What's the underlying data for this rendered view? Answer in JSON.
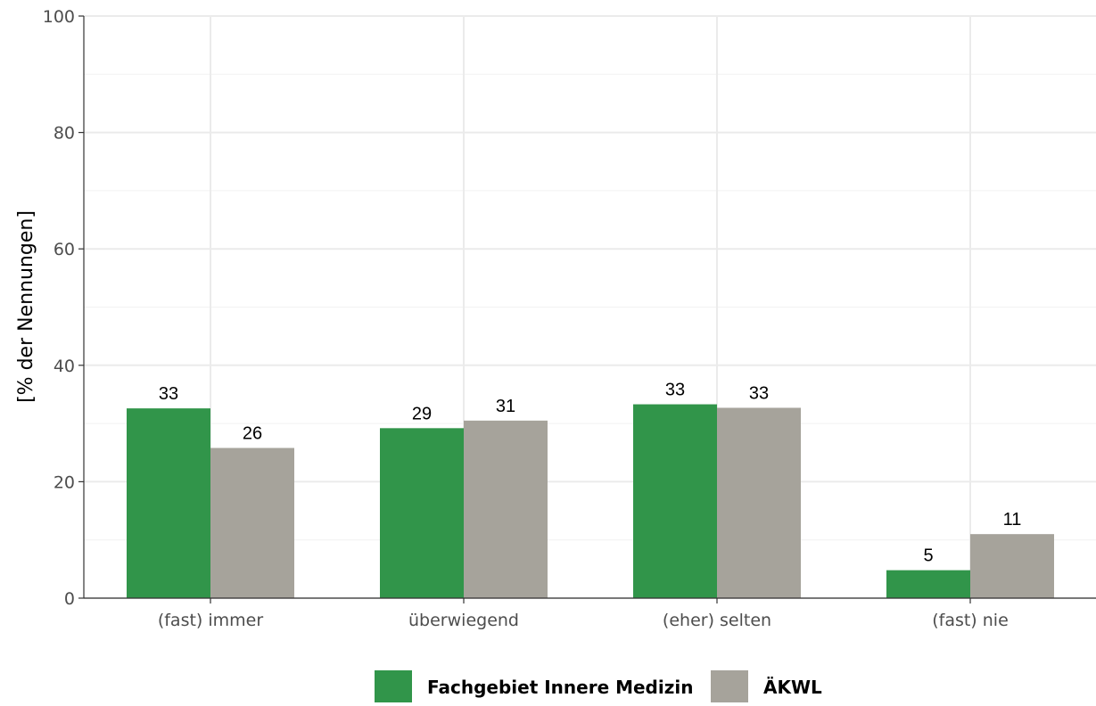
{
  "chart_data": {
    "type": "bar",
    "categories": [
      "(fast) immer",
      "überwiegend",
      "(eher) selten",
      "(fast) nie"
    ],
    "series": [
      {
        "name": "Fachgebiet Innere Medizin",
        "color": "#31954a",
        "values": [
          32.6,
          29.2,
          33.3,
          4.8
        ],
        "labels": [
          "33",
          "29",
          "33",
          "5"
        ]
      },
      {
        "name": "ÄKWL",
        "color": "#a6a39b",
        "values": [
          25.8,
          30.5,
          32.7,
          11.0
        ],
        "labels": [
          "26",
          "31",
          "33",
          "11"
        ]
      }
    ],
    "title": "",
    "xlabel": "",
    "ylabel": "[% der Nennungen]",
    "ylim": [
      0,
      100
    ],
    "yticks": [
      "0",
      "20",
      "40",
      "60",
      "80",
      "100"
    ],
    "grid": true,
    "legend_position": "bottom"
  }
}
